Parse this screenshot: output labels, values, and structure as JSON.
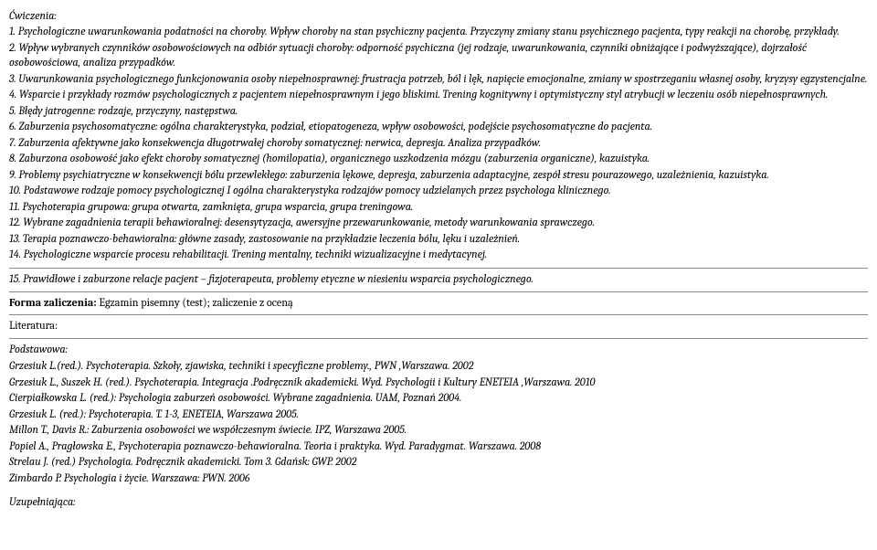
{
  "exercises": {
    "heading": "Ćwiczenia:",
    "items": [
      "1. Psychologiczne uwarunkowania podatności na choroby. Wpływ choroby na stan psychiczny pacjenta.  Przyczyny zmiany stanu psychicznego pacjenta, typy reakcji na chorobę, przykłady.",
      "2. Wpływ wybranych czynników osobowościowych na odbiór sytuacji choroby: odporność psychiczna (jej rodzaje, uwarunkowania, czynniki obniżające i podwyższające), dojrzałość osobowościowa, analiza przypadków.",
      "3. Uwarunkowania psychologicznego funkcjonowania osoby niepełnosprawnej: frustracja potrzeb, ból i lęk, napięcie emocjonalne, zmiany w spostrzeganiu własnej osoby, kryzysy egzystencjalne.",
      "4. Wsparcie i przykłady rozmów psychologicznych z pacjentem niepełnosprawnym i jego bliskimi. Trening kognitywny i optymistyczny styl atrybucji w leczeniu osób niepełnosprawnych.",
      "5. Błędy jatrogenne: rodzaje, przyczyny, następstwa.",
      "6. Zaburzenia psychosomatyczne: ogólna charakterystyka, podział, etiopatogeneza, wpływ osobowości, podejście psychosomatyczne do pacjenta.",
      "7. Zaburzenia afektywne jako konsekwencja długotrwałej choroby somatycznej: nerwica, depresja. Analiza przypadków.",
      "8. Zaburzona osobowość jako efekt choroby somatycznej (homilopatia), organicznego uszkodzenia mózgu (zaburzenia organiczne), kazuistyka.",
      "9. Problemy psychiatryczne w konsekwencji bólu przewlekłego: zaburzenia lękowe, depresja, zaburzenia adaptacyjne, zespół stresu pourazowego, uzależnienia, kazuistyka.",
      "10. Podstawowe rodzaje pomocy psychologicznej I ogólna charakterystyka rodzajów pomocy udzielanych przez psychologa klinicznego.",
      "11. Psychoterapia grupowa: grupa otwarta, zamknięta, grupa wsparcia, grupa treningowa.",
      "12. Wybrane zagadnienia terapii behawioralnej: desensytyzacja, awersyjne przewarunkowanie, metody warunkowania sprawczego.",
      "13. Terapia poznawczo-behawioralna: główne zasady, zastosowanie na przykładzie leczenia bólu, lęku i uzależnień.",
      "14. Psychologiczne wsparcie procesu rehabilitacji. Trening mentalny, techniki wizualizacyjne i medytacynej."
    ],
    "final_item": "15. Prawidłowe i zaburzone relacje pacjent – fizjoterapeuta, problemy etyczne w niesieniu wsparcia psychologicznego."
  },
  "assessment": {
    "label": "Forma zaliczenia: ",
    "value": "Egzamin pisemny (test); zaliczenie z oceną"
  },
  "literature": {
    "label": "Literatura:",
    "primary_label": "Podstawowa:",
    "primary_items": [
      "Grzesiuk  L.(red.). Psychoterapia. Szkoły, zjawiska, techniki i specyficzne problemy., PWN ,Warszawa. 2002",
      "Grzesiuk  L., Suszek H. (red.).  Psychoterapia. Integracja .Podręcznik akademicki. Wyd. Psychologii i Kultury ENETEIA ,Warszawa.  2010",
      " Cierpiałkowska L. (red.): Psychologia zaburzeń osobowości. Wybrane zagadnienia. UAM, Poznań 2004.",
      "Grzesiuk L. (red.): Psychoterapia. T. 1-3, ENETEIA, Warszawa 2005.",
      "Millon T., Davis R.: Zaburzenia osobowości we współczesnym świecie. IPZ, Warszawa 2005.",
      "Popiel A., Pragłowska E., Psychoterapia poznawczo-behawioralna. Teoria i  praktyka. Wyd. Paradygmat. Warszawa. 2008",
      "Strelau J. (red.) Psychologia. Podręcznik akademicki. Tom 3. Gdańsk: GWP. 2002",
      "Zimbardo P. Psychologia i życie. Warszawa: PWN. 2006"
    ],
    "supplementary_label": "Uzupełniająca:"
  }
}
